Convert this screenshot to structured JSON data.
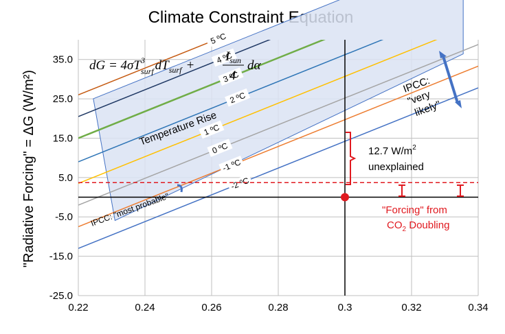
{
  "chart_data": {
    "type": "line",
    "title": "Climate Constraint Equation",
    "ylabel": "\"Radiative Forcing\" = ΔG (W/m²)",
    "xlabel": "",
    "xlim": [
      0.22,
      0.34
    ],
    "ylim": [
      -25,
      40
    ],
    "x_ticks": [
      "0.22",
      "0.24",
      "0.26",
      "0.28",
      "0.3",
      "0.32",
      "0.34"
    ],
    "y_ticks": [
      "35.0",
      "25.0",
      "15.0",
      "5.0",
      "-5.0",
      "-15.0",
      "-25.0"
    ],
    "grid": true,
    "slope_per_unit_albedo": 340,
    "series": [
      {
        "name": "5 ºC",
        "dT": 5,
        "y_at_022": 26.0,
        "color": "#c55a11"
      },
      {
        "name": "4 ºC",
        "dT": 4,
        "y_at_022": 20.5,
        "color": "#1f3864"
      },
      {
        "name": "3 ºC",
        "dT": 3,
        "y_at_022": 15.0,
        "color": "#70ad47"
      },
      {
        "name": "2 ºC",
        "dT": 2,
        "y_at_022": 9.0,
        "color": "#2e75b6"
      },
      {
        "name": "1 ºC",
        "dT": 1,
        "y_at_022": 3.5,
        "color": "#ffc000"
      },
      {
        "name": "0 ºC",
        "dT": 0,
        "y_at_022": -2.0,
        "color": "#a5a5a5"
      },
      {
        "name": "-1 ºC",
        "dT": -1,
        "y_at_022": -7.5,
        "color": "#ed7d31"
      },
      {
        "name": "-2 ºC",
        "dT": -2,
        "y_at_022": -13.0,
        "color": "#4472c4"
      }
    ],
    "reference": {
      "vline_x": 0.3,
      "hline_y": 0,
      "forcing_y": 3.7,
      "point": {
        "x": 0.3,
        "y": 0
      }
    },
    "annotations": {
      "equation": {
        "lhs": "dG = 4σT",
        "sup": "3",
        "sub": "surf",
        "mid": "dT",
        "sub2": "surf",
        "plus": "+",
        "num": "I",
        "numsub": "sun",
        "den": "4",
        "tail": "dα"
      },
      "temperature_rise": "Temperature Rise",
      "ipcc_very_likely_1": "IPCC:",
      "ipcc_very_likely_2": "\"very",
      "ipcc_very_likely_3": "likely\"",
      "ipcc_most_probable": "IPCC: \"most probable\"",
      "unexplained_value": "12.7 W/m",
      "unexplained_sup": "2",
      "unexplained_text": "unexplained",
      "forcing_line1": "\"Forcing\" from",
      "forcing_co2": "CO",
      "forcing_sub": "2",
      "forcing_tail": " Doubling"
    },
    "colors": {
      "band_fill": "#dae3f3",
      "band_stroke": "#4472c4",
      "dashed": "#e0191f",
      "point": "#e0191f",
      "bracket": "#e0191f",
      "grid": "#bfbfbf",
      "arrow": "#4472c4"
    }
  }
}
